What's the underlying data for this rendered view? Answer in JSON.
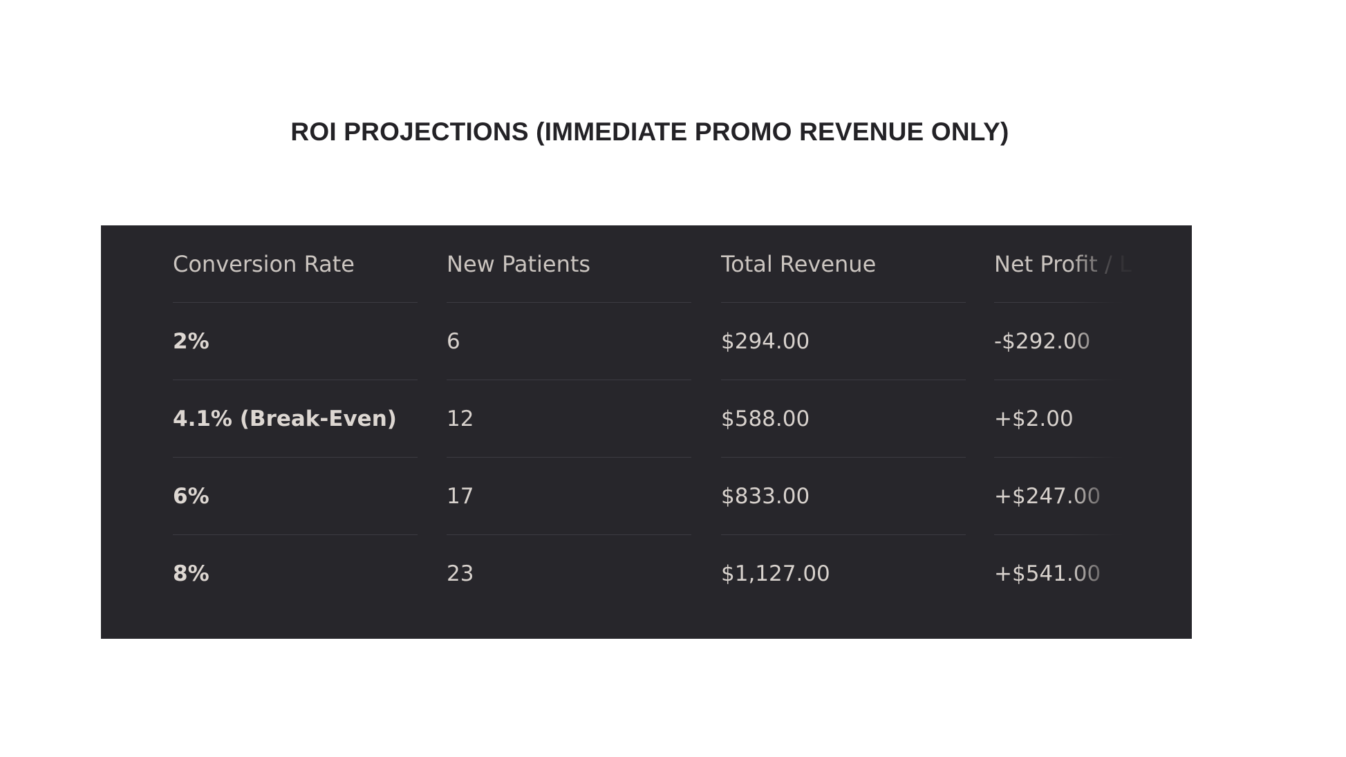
{
  "title": "ROI PROJECTIONS (IMMEDIATE PROMO REVENUE ONLY)",
  "table": {
    "headers": [
      "Conversion Rate",
      "New Patients",
      "Total Revenue",
      "Net Profit / Lo"
    ],
    "rows": [
      [
        "2%",
        "6",
        "$294.00",
        "-$292.00"
      ],
      [
        "4.1% (Break-Even)",
        "12",
        "$588.00",
        "+$2.00"
      ],
      [
        "6%",
        "17",
        "$833.00",
        "+$247.00"
      ],
      [
        "8%",
        "23",
        "$1,127.00",
        "+$541.00"
      ]
    ]
  },
  "colors": {
    "panel_background": "#27262b",
    "text": "#d8d2cd",
    "divider": "#3d3c42",
    "title": "#232226"
  }
}
